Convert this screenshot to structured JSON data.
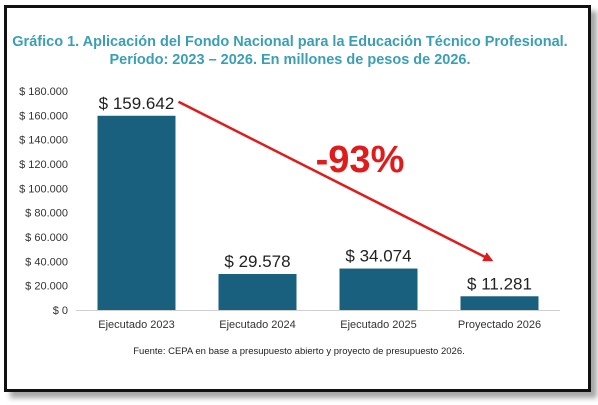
{
  "chart_data": {
    "type": "bar",
    "title": "Gráfico 1. Aplicación del Fondo Nacional para la Educación Técnico Profesional.",
    "subtitle": "Período: 2023 – 2026. En millones de pesos de 2026.",
    "categories": [
      "Ejecutado 2023",
      "Ejecutado 2024",
      "Ejecutado 2025",
      "Proyectado 2026"
    ],
    "values": [
      159642,
      29578,
      34074,
      11281
    ],
    "data_labels": [
      "$ 159.642",
      "$ 29.578",
      "$ 34.074",
      "$ 11.281"
    ],
    "y_ticks": [
      0,
      20000,
      40000,
      60000,
      80000,
      100000,
      120000,
      140000,
      160000,
      180000
    ],
    "y_tick_labels": [
      "$ 0",
      "$ 20.000",
      "$ 40.000",
      "$ 60.000",
      "$ 80.000",
      "$ 100.000",
      "$ 120.000",
      "$ 140.000",
      "$ 160.000",
      "$ 180.000"
    ],
    "ylim": [
      0,
      180000
    ],
    "xlabel": "",
    "ylabel": "",
    "grid": false,
    "bar_color": "#19607f",
    "annotation": {
      "text": "-93%",
      "color": "#e01b1b",
      "arrow_from": "Ejecutado 2023",
      "arrow_to": "Proyectado 2026"
    },
    "source": "Fuente: CEPA en base a presupuesto abierto y proyecto de presupuesto 2026."
  }
}
